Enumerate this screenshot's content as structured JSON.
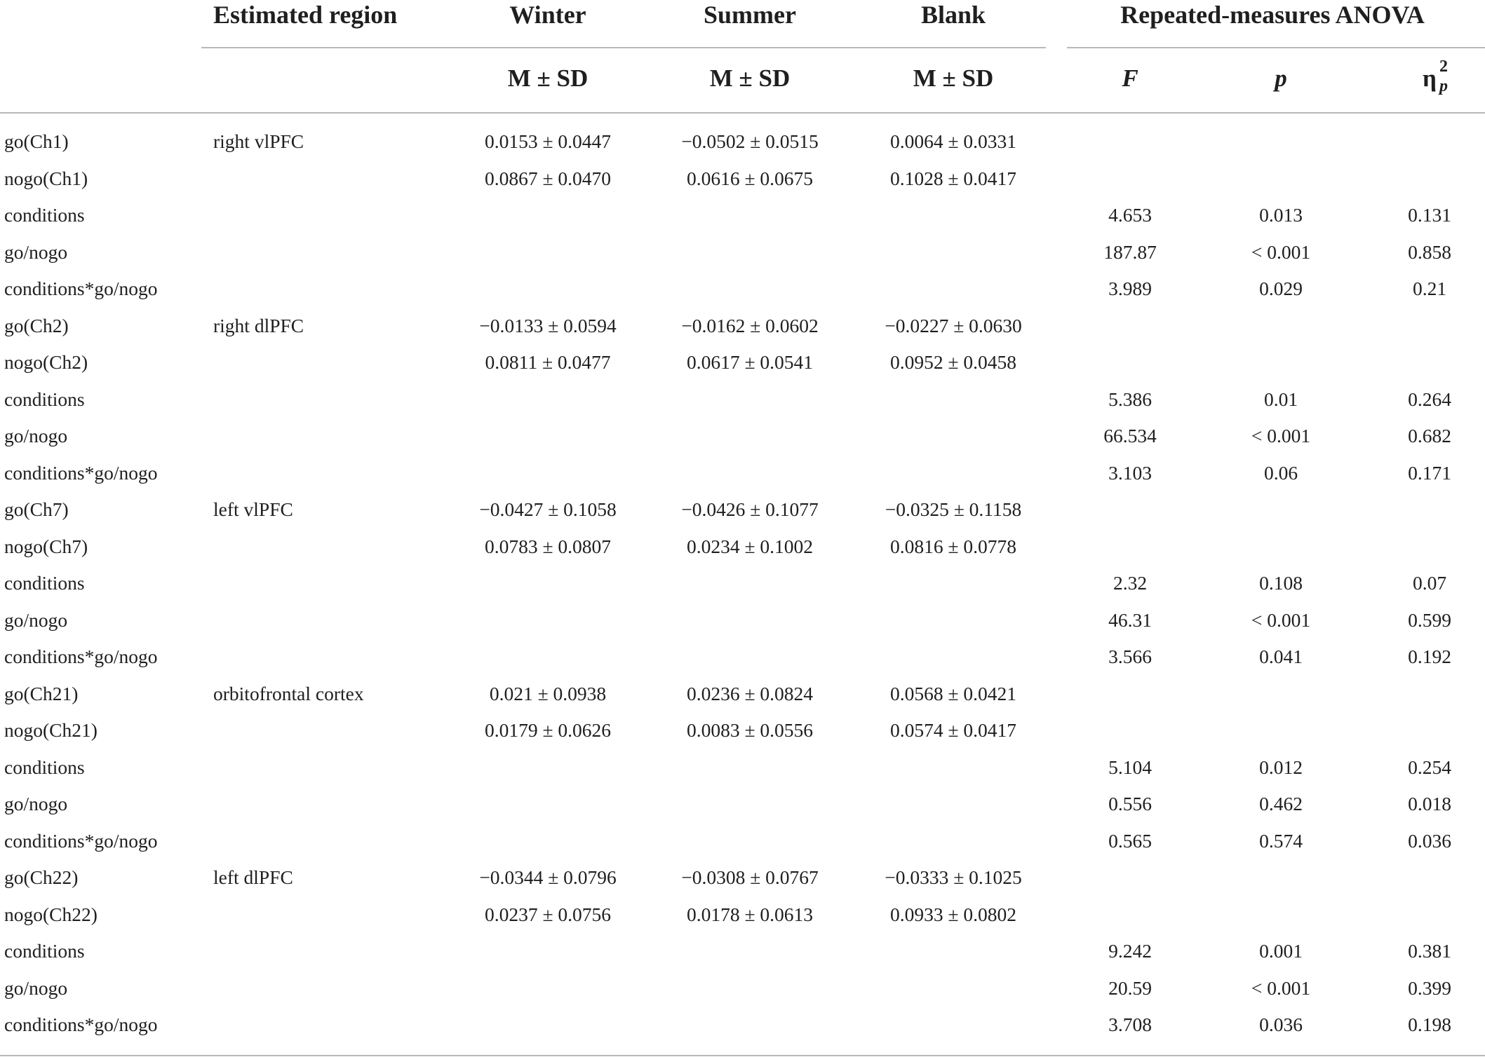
{
  "header": {
    "estimated_region": "Estimated region",
    "winter": "Winter",
    "summer": "Summer",
    "blank": "Blank",
    "anova": "Repeated-measures ANOVA",
    "msd": "M ± SD",
    "f": "F",
    "p": "p",
    "eta_base": "η",
    "eta_sup": "2",
    "eta_sub": "p"
  },
  "rows": [
    {
      "label": "go(Ch1)",
      "region": "right vlPFC",
      "winter": "0.0153 ± 0.0447",
      "summer": "−0.0502 ± 0.0515",
      "blank": "0.0064 ± 0.0331",
      "f": "",
      "p": "",
      "eta": ""
    },
    {
      "label": "nogo(Ch1)",
      "region": "",
      "winter": "0.0867 ± 0.0470",
      "summer": "0.0616 ± 0.0675",
      "blank": "0.1028 ± 0.0417",
      "f": "",
      "p": "",
      "eta": ""
    },
    {
      "label": "conditions",
      "region": "",
      "winter": "",
      "summer": "",
      "blank": "",
      "f": "4.653",
      "p": "0.013",
      "eta": "0.131"
    },
    {
      "label": "go/nogo",
      "region": "",
      "winter": "",
      "summer": "",
      "blank": "",
      "f": "187.87",
      "p": "< 0.001",
      "eta": "0.858"
    },
    {
      "label": "conditions*go/nogo",
      "region": "",
      "winter": "",
      "summer": "",
      "blank": "",
      "f": "3.989",
      "p": "0.029",
      "eta": "0.21"
    },
    {
      "label": "go(Ch2)",
      "region": "right dlPFC",
      "winter": "−0.0133 ± 0.0594",
      "summer": "−0.0162 ± 0.0602",
      "blank": "−0.0227 ± 0.0630",
      "f": "",
      "p": "",
      "eta": ""
    },
    {
      "label": "nogo(Ch2)",
      "region": "",
      "winter": "0.0811 ± 0.0477",
      "summer": "0.0617 ± 0.0541",
      "blank": "0.0952 ± 0.0458",
      "f": "",
      "p": "",
      "eta": ""
    },
    {
      "label": "conditions",
      "region": "",
      "winter": "",
      "summer": "",
      "blank": "",
      "f": "5.386",
      "p": "0.01",
      "eta": "0.264"
    },
    {
      "label": "go/nogo",
      "region": "",
      "winter": "",
      "summer": "",
      "blank": "",
      "f": "66.534",
      "p": "< 0.001",
      "eta": "0.682"
    },
    {
      "label": "conditions*go/nogo",
      "region": "",
      "winter": "",
      "summer": "",
      "blank": "",
      "f": "3.103",
      "p": "0.06",
      "eta": "0.171"
    },
    {
      "label": "go(Ch7)",
      "region": "left vlPFC",
      "winter": "−0.0427 ± 0.1058",
      "summer": "−0.0426 ± 0.1077",
      "blank": "−0.0325 ± 0.1158",
      "f": "",
      "p": "",
      "eta": ""
    },
    {
      "label": "nogo(Ch7)",
      "region": "",
      "winter": "0.0783 ± 0.0807",
      "summer": "0.0234 ± 0.1002",
      "blank": "0.0816 ± 0.0778",
      "f": "",
      "p": "",
      "eta": ""
    },
    {
      "label": "conditions",
      "region": "",
      "winter": "",
      "summer": "",
      "blank": "",
      "f": "2.32",
      "p": "0.108",
      "eta": "0.07"
    },
    {
      "label": "go/nogo",
      "region": "",
      "winter": "",
      "summer": "",
      "blank": "",
      "f": "46.31",
      "p": "< 0.001",
      "eta": "0.599"
    },
    {
      "label": "conditions*go/nogo",
      "region": "",
      "winter": "",
      "summer": "",
      "blank": "",
      "f": "3.566",
      "p": "0.041",
      "eta": "0.192"
    },
    {
      "label": "go(Ch21)",
      "region": "orbitofrontal cortex",
      "winter": "0.021 ± 0.0938",
      "summer": "0.0236 ± 0.0824",
      "blank": "0.0568 ± 0.0421",
      "f": "",
      "p": "",
      "eta": ""
    },
    {
      "label": "nogo(Ch21)",
      "region": "",
      "winter": "0.0179 ± 0.0626",
      "summer": "0.0083 ± 0.0556",
      "blank": "0.0574 ± 0.0417",
      "f": "",
      "p": "",
      "eta": ""
    },
    {
      "label": "conditions",
      "region": "",
      "winter": "",
      "summer": "",
      "blank": "",
      "f": "5.104",
      "p": "0.012",
      "eta": "0.254"
    },
    {
      "label": "go/nogo",
      "region": "",
      "winter": "",
      "summer": "",
      "blank": "",
      "f": "0.556",
      "p": "0.462",
      "eta": "0.018"
    },
    {
      "label": "conditions*go/nogo",
      "region": "",
      "winter": "",
      "summer": "",
      "blank": "",
      "f": "0.565",
      "p": "0.574",
      "eta": "0.036"
    },
    {
      "label": "go(Ch22)",
      "region": "left dlPFC",
      "winter": "−0.0344 ± 0.0796",
      "summer": "−0.0308 ± 0.0767",
      "blank": "−0.0333 ± 0.1025",
      "f": "",
      "p": "",
      "eta": ""
    },
    {
      "label": "nogo(Ch22)",
      "region": "",
      "winter": "0.0237 ± 0.0756",
      "summer": "0.0178 ± 0.0613",
      "blank": "0.0933 ± 0.0802",
      "f": "",
      "p": "",
      "eta": ""
    },
    {
      "label": "conditions",
      "region": "",
      "winter": "",
      "summer": "",
      "blank": "",
      "f": "9.242",
      "p": "0.001",
      "eta": "0.381"
    },
    {
      "label": "go/nogo",
      "region": "",
      "winter": "",
      "summer": "",
      "blank": "",
      "f": "20.59",
      "p": "< 0.001",
      "eta": "0.399"
    },
    {
      "label": "conditions*go/nogo",
      "region": "",
      "winter": "",
      "summer": "",
      "blank": "",
      "f": "3.708",
      "p": "0.036",
      "eta": "0.198"
    }
  ]
}
